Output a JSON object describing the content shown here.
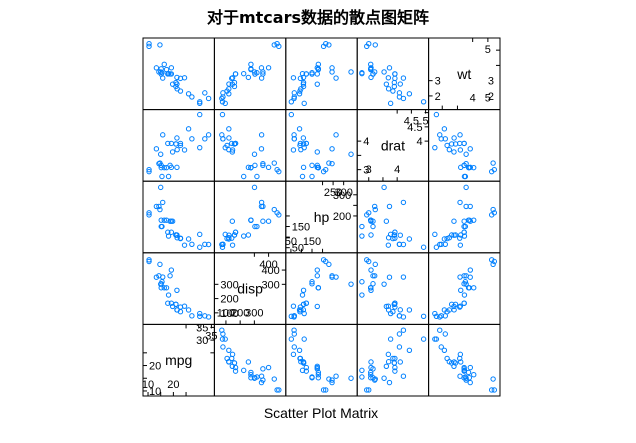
{
  "chart_data": {
    "type": "scatter",
    "title": "对于mtcars数据的散点图矩阵",
    "xlabel": "Scatter Plot Matrix",
    "variables": [
      {
        "name": "mpg",
        "range": [
          9.2,
          35.0
        ],
        "ticks": [
          10,
          15,
          20,
          25,
          30,
          35
        ],
        "ticks_lower": [
          10,
          15,
          20,
          25
        ],
        "ticks_upper": [
          25,
          30,
          35
        ],
        "tick_labels_left": [
          10,
          20
        ],
        "tick_labels_top": [
          35
        ],
        "tick_labels_right": [
          30,
          35
        ],
        "tick_labels_bottom": [
          10,
          20
        ]
      },
      {
        "name": "disp",
        "range": [
          40,
          500
        ],
        "ticks": [
          100,
          200,
          300,
          400
        ],
        "ticks_lower": [
          100,
          200,
          300
        ],
        "ticks_upper": [
          300,
          400
        ],
        "tick_labels_left": [
          100,
          200,
          300
        ],
        "tick_labels_top": [
          400
        ],
        "tick_labels_right": [
          300,
          400
        ],
        "tick_labels_bottom": [
          100,
          200,
          300
        ]
      },
      {
        "name": "hp",
        "range": [
          40,
          350
        ],
        "ticks": [
          50,
          100,
          150,
          200,
          250,
          300
        ],
        "ticks_lower": [
          50,
          100,
          150,
          200
        ],
        "ticks_upper": [
          200,
          250,
          300
        ],
        "tick_labels_left": [
          50,
          150
        ],
        "tick_labels_top": [
          250,
          300
        ],
        "tick_labels_right": [
          200,
          300
        ],
        "tick_labels_bottom": [
          50,
          150
        ]
      },
      {
        "name": "drat",
        "range": [
          2.7,
          5.0
        ],
        "ticks": [
          3.0,
          3.5,
          4.0,
          4.5
        ],
        "ticks_lower": [
          3.0,
          3.5,
          4.0
        ],
        "ticks_upper": [
          4.0,
          4.5,
          5.0
        ],
        "tick_labels_left": [
          3.0,
          4.0
        ],
        "tick_labels_top": [
          4.5,
          5.0
        ],
        "tick_labels_right": [
          4.0,
          4.5
        ],
        "tick_labels_bottom": [
          3.0,
          4.0
        ]
      },
      {
        "name": "wt",
        "range": [
          1.3,
          5.6
        ],
        "ticks": [
          2,
          3,
          4,
          5
        ],
        "ticks_lower": [
          2,
          3
        ],
        "ticks_upper": [
          4,
          5
        ],
        "tick_labels_left": [
          2,
          3
        ],
        "tick_labels_top": [
          5
        ],
        "tick_labels_right": [
          2,
          3
        ],
        "tick_labels_bottom": [
          4,
          5
        ]
      }
    ],
    "points": {
      "mpg": [
        21.0,
        21.0,
        22.8,
        21.4,
        18.7,
        18.1,
        14.3,
        24.4,
        22.8,
        19.2,
        17.8,
        16.4,
        17.3,
        15.2,
        10.4,
        10.4,
        14.7,
        32.4,
        30.4,
        33.9,
        21.5,
        15.5,
        15.2,
        13.3,
        19.2,
        27.3,
        26.0,
        30.4,
        15.8,
        19.7,
        15.0,
        21.4
      ],
      "disp": [
        160,
        160,
        108,
        258,
        360,
        225,
        360,
        146.7,
        140.8,
        167.6,
        167.6,
        275.8,
        275.8,
        275.8,
        472,
        460,
        440,
        78.7,
        75.7,
        71.1,
        120.1,
        318,
        304,
        350,
        400,
        79,
        120.3,
        95.1,
        351,
        145,
        301,
        121
      ],
      "hp": [
        110,
        110,
        93,
        110,
        175,
        105,
        245,
        62,
        95,
        123,
        123,
        180,
        180,
        180,
        205,
        215,
        230,
        66,
        52,
        65,
        97,
        150,
        150,
        245,
        175,
        66,
        91,
        113,
        264,
        175,
        335,
        109
      ],
      "drat": [
        3.9,
        3.9,
        3.85,
        3.08,
        3.15,
        2.76,
        3.21,
        3.69,
        3.92,
        3.92,
        3.92,
        3.07,
        3.07,
        3.07,
        2.93,
        3.0,
        3.23,
        4.08,
        4.93,
        4.22,
        3.7,
        2.76,
        3.15,
        3.73,
        3.08,
        4.08,
        4.43,
        3.77,
        4.22,
        3.62,
        3.54,
        4.11
      ],
      "wt": [
        2.62,
        2.875,
        2.32,
        3.215,
        3.44,
        3.46,
        3.57,
        3.19,
        3.15,
        3.44,
        3.44,
        4.07,
        3.73,
        3.78,
        5.25,
        5.424,
        5.345,
        2.2,
        1.615,
        1.835,
        2.465,
        3.52,
        3.435,
        3.84,
        3.845,
        1.935,
        2.14,
        1.513,
        3.17,
        2.77,
        3.57,
        2.78
      ]
    },
    "marker": "circle",
    "colors": {
      "points": "#0080ff",
      "frame": "#000000"
    }
  }
}
